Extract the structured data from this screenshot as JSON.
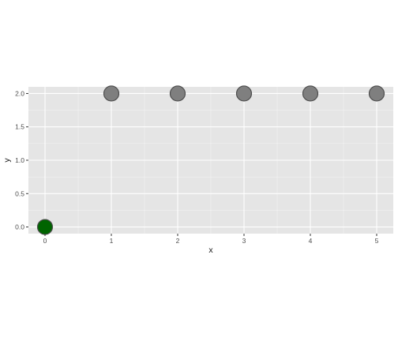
{
  "chart_data": {
    "type": "scatter",
    "title": "",
    "xlabel": "x",
    "ylabel": "y",
    "xlim": [
      -0.25,
      5.25
    ],
    "ylim": [
      -0.1,
      2.1
    ],
    "x_ticks": [
      0,
      1,
      2,
      3,
      4,
      5
    ],
    "x_tick_labels": [
      "0",
      "1",
      "2",
      "3",
      "4",
      "5"
    ],
    "y_ticks": [
      0,
      0.5,
      1,
      1.5,
      2
    ],
    "y_tick_labels": [
      "0.0",
      "0.5",
      "1.0",
      "1.5",
      "2.0"
    ],
    "grid": true,
    "legend": "none",
    "series": [
      {
        "points": [
          {
            "x": 0,
            "y": 0,
            "color": "#006400"
          },
          {
            "x": 1,
            "y": 2,
            "color": "#7f7f7f"
          },
          {
            "x": 2,
            "y": 2,
            "color": "#7f7f7f"
          },
          {
            "x": 3,
            "y": 2,
            "color": "#7f7f7f"
          },
          {
            "x": 4,
            "y": 2,
            "color": "#7f7f7f"
          },
          {
            "x": 5,
            "y": 2,
            "color": "#7f7f7f"
          }
        ]
      }
    ],
    "colors": {
      "panel_background": "#e5e5e5",
      "grid_major": "#ffffff",
      "highlight_point": "#006400",
      "other_points": "#7f7f7f",
      "point_outline": "#4d4d4d"
    }
  }
}
